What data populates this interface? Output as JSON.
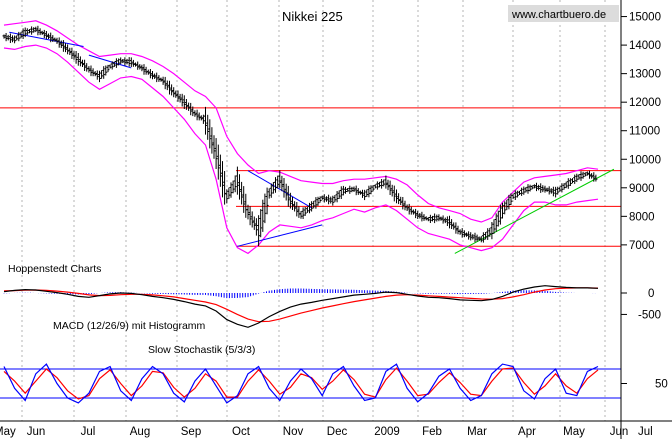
{
  "chart_data": {
    "type": "ohlc",
    "title": "Nikkei 225",
    "source_label": "www.chartbuero.de",
    "credit_label": "Hoppenstedt Charts",
    "months": [
      "Jun",
      "Jul",
      "Aug",
      "Sep",
      "Oct",
      "Nov",
      "Dec",
      "2009",
      "Feb",
      "Mar",
      "Apr",
      "May",
      "Jun"
    ],
    "month_edge_labels": [
      "May",
      "Jul"
    ],
    "price_panel": {
      "y_ticks": [
        7000,
        8000,
        9000,
        10000,
        11000,
        12000,
        13000,
        14000,
        15000
      ],
      "ylim": [
        6400,
        15300
      ],
      "series_name": "",
      "close": [
        14300,
        14200,
        14450,
        14550,
        14350,
        14150,
        13850,
        13500,
        13150,
        12900,
        13250,
        13450,
        13400,
        13200,
        12950,
        12750,
        12350,
        12000,
        11600,
        11350,
        10200,
        8700,
        9250,
        8150,
        7500,
        8800,
        9300,
        8550,
        8050,
        8350,
        8650,
        8550,
        8900,
        8950,
        8750,
        9050,
        9200,
        8700,
        8300,
        8050,
        7900,
        7950,
        7800,
        7450,
        7300,
        7200,
        7500,
        8200,
        8700,
        8900,
        9050,
        8950,
        8850,
        9100,
        9350,
        9500,
        9300
      ],
      "upper_band": [
        14700,
        14750,
        14800,
        14850,
        14700,
        14500,
        14250,
        14000,
        13800,
        13600,
        13650,
        13700,
        13700,
        13600,
        13450,
        13250,
        13000,
        12700,
        12400,
        12200,
        11800,
        10800,
        10200,
        9800,
        9500,
        9600,
        9550,
        9400,
        9250,
        9200,
        9150,
        9150,
        9250,
        9300,
        9300,
        9350,
        9400,
        9300,
        9100,
        8750,
        8450,
        8300,
        8200,
        8100,
        7900,
        7800,
        7950,
        8500,
        8850,
        9200,
        9350,
        9400,
        9450,
        9500,
        9600,
        9700,
        9650
      ],
      "lower_band": [
        13900,
        13850,
        13950,
        14000,
        13900,
        13700,
        13400,
        13050,
        12700,
        12450,
        12650,
        12850,
        12900,
        12800,
        12500,
        12200,
        11800,
        11400,
        10900,
        10500,
        9300,
        7600,
        6900,
        6700,
        7000,
        7450,
        7700,
        7650,
        7600,
        7700,
        7850,
        7950,
        8100,
        8250,
        8150,
        8300,
        8400,
        8200,
        7900,
        7600,
        7400,
        7300,
        7200,
        7000,
        6900,
        6800,
        6900,
        7200,
        7700,
        8200,
        8500,
        8500,
        8400,
        8400,
        8500,
        8550,
        8600
      ],
      "horizontal_lines": [
        11800,
        9600,
        8350,
        6950
      ],
      "trendlines": [
        {
          "from": [
            22,
            6950
          ],
          "to": [
            30,
            7700
          ],
          "color": "#0000ff"
        },
        {
          "from": [
            23,
            9600
          ],
          "to": [
            29,
            8300
          ],
          "color": "#0000ff"
        },
        {
          "from": [
            0.5,
            14450
          ],
          "to": [
            7.5,
            13950
          ],
          "color": "#0000ff"
        },
        {
          "from": [
            8,
            13650
          ],
          "to": [
            12,
            13200
          ],
          "color": "#0000ff"
        },
        {
          "from": [
            42.5,
            6700
          ],
          "to": [
            57.5,
            9650
          ],
          "color": "#00cc00"
        }
      ],
      "colors": {
        "bars": "#000000",
        "bands": "#ff00ff",
        "hlines": "#ff0000"
      }
    },
    "macd_panel": {
      "label": "MACD (12/26/9) mit Histogramm",
      "y_ticks": [
        0,
        -500
      ],
      "ylim": [
        -1050,
        350
      ],
      "macd": [
        30,
        60,
        80,
        70,
        40,
        10,
        -30,
        -80,
        -100,
        -60,
        -20,
        0,
        -10,
        -40,
        -80,
        -110,
        -150,
        -200,
        -260,
        -300,
        -420,
        -620,
        -730,
        -800,
        -700,
        -550,
        -430,
        -330,
        -260,
        -220,
        -170,
        -130,
        -90,
        -50,
        -30,
        -10,
        20,
        10,
        -30,
        -70,
        -100,
        -110,
        -130,
        -160,
        -170,
        -180,
        -150,
        -80,
        20,
        90,
        140,
        170,
        150,
        130,
        120,
        120,
        110
      ],
      "signal": [
        50,
        55,
        65,
        70,
        60,
        45,
        20,
        -10,
        -45,
        -60,
        -55,
        -40,
        -30,
        -30,
        -45,
        -65,
        -90,
        -130,
        -170,
        -210,
        -270,
        -380,
        -500,
        -610,
        -670,
        -660,
        -610,
        -540,
        -470,
        -410,
        -350,
        -300,
        -250,
        -200,
        -160,
        -120,
        -80,
        -50,
        -40,
        -50,
        -65,
        -80,
        -95,
        -110,
        -125,
        -140,
        -145,
        -130,
        -90,
        -40,
        20,
        70,
        100,
        115,
        120,
        120,
        115
      ],
      "colors": {
        "macd": "#000000",
        "signal": "#ff0000",
        "histogram": "#0000ff"
      }
    },
    "stochastic_panel": {
      "label": "Slow Stochastik (5/3/3)",
      "y_ticks": [
        50
      ],
      "ylim": [
        -15,
        115
      ],
      "bands": [
        80,
        20
      ],
      "k": [
        85,
        40,
        15,
        70,
        90,
        50,
        20,
        10,
        30,
        75,
        85,
        35,
        15,
        60,
        85,
        70,
        30,
        12,
        55,
        80,
        45,
        10,
        25,
        70,
        85,
        40,
        15,
        55,
        80,
        60,
        25,
        70,
        85,
        45,
        15,
        20,
        75,
        90,
        40,
        12,
        30,
        65,
        80,
        40,
        15,
        25,
        70,
        90,
        85,
        35,
        18,
        60,
        80,
        30,
        25,
        75,
        85
      ],
      "d": [
        75,
        55,
        30,
        55,
        80,
        62,
        35,
        18,
        25,
        60,
        78,
        50,
        25,
        45,
        75,
        72,
        42,
        22,
        40,
        70,
        55,
        22,
        22,
        55,
        78,
        55,
        28,
        42,
        70,
        62,
        38,
        55,
        78,
        58,
        28,
        22,
        58,
        82,
        55,
        25,
        28,
        52,
        72,
        52,
        28,
        25,
        55,
        80,
        82,
        52,
        28,
        45,
        70,
        45,
        30,
        60,
        78
      ],
      "colors": {
        "k": "#0000ff",
        "d": "#ff0000",
        "bands": "#0000ff"
      }
    }
  }
}
